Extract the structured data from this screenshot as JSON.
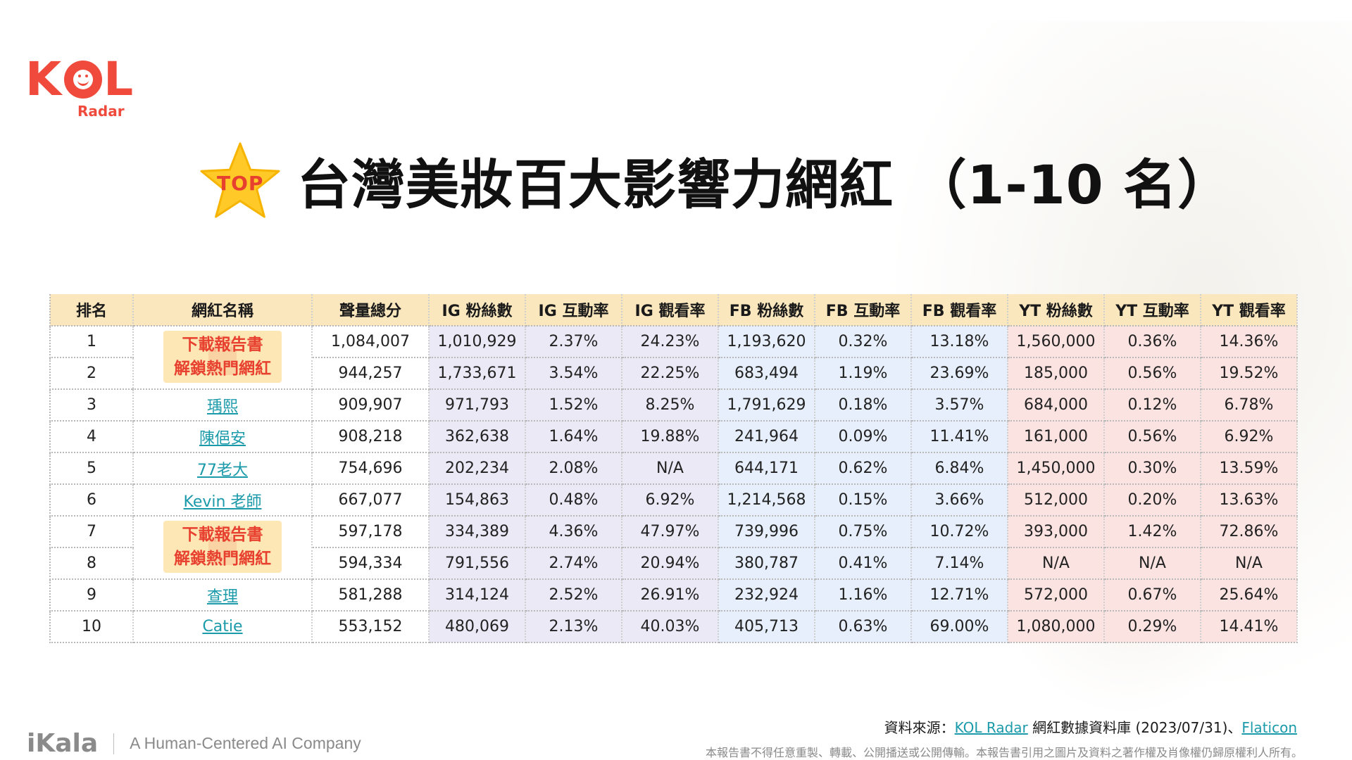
{
  "logo": {
    "main_left": "K",
    "main_right": "L",
    "sub": "Radar"
  },
  "badge": {
    "label": "TOP"
  },
  "title": "台灣美妝百大影響力網紅 （1-10 名）",
  "colors": {
    "accent": "#ef4a3c",
    "header_bg": "#fbe7be",
    "ig_bg": "#ece9f6",
    "fb_bg": "#e6effb",
    "yt_bg": "#fbe3e1",
    "link": "#1b9aaa"
  },
  "table": {
    "headers": [
      "排名",
      "網紅名稱",
      "聲量總分",
      "IG 粉絲數",
      "IG 互動率",
      "IG 觀看率",
      "FB 粉絲數",
      "FB 互動率",
      "FB 觀看率",
      "YT 粉絲數",
      "YT 互動率",
      "YT 觀看率"
    ],
    "locked_label_1": "下載報告書",
    "locked_label_2": "解鎖熱門網紅",
    "rows": [
      {
        "rank": "1",
        "name": "",
        "score": "1,084,007",
        "ig_fans": "1,010,929",
        "ig_eng": "2.37%",
        "ig_view": "24.23%",
        "fb_fans": "1,193,620",
        "fb_eng": "0.32%",
        "fb_view": "13.18%",
        "yt_fans": "1,560,000",
        "yt_eng": "0.36%",
        "yt_view": "14.36%"
      },
      {
        "rank": "2",
        "name": "",
        "score": "944,257",
        "ig_fans": "1,733,671",
        "ig_eng": "3.54%",
        "ig_view": "22.25%",
        "fb_fans": "683,494",
        "fb_eng": "1.19%",
        "fb_view": "23.69%",
        "yt_fans": "185,000",
        "yt_eng": "0.56%",
        "yt_view": "19.52%"
      },
      {
        "rank": "3",
        "name": "瑀熙",
        "score": "909,907",
        "ig_fans": "971,793",
        "ig_eng": "1.52%",
        "ig_view": "8.25%",
        "fb_fans": "1,791,629",
        "fb_eng": "0.18%",
        "fb_view": "3.57%",
        "yt_fans": "684,000",
        "yt_eng": "0.12%",
        "yt_view": "6.78%"
      },
      {
        "rank": "4",
        "name": "陳俋安",
        "score": "908,218",
        "ig_fans": "362,638",
        "ig_eng": "1.64%",
        "ig_view": "19.88%",
        "fb_fans": "241,964",
        "fb_eng": "0.09%",
        "fb_view": "11.41%",
        "yt_fans": "161,000",
        "yt_eng": "0.56%",
        "yt_view": "6.92%"
      },
      {
        "rank": "5",
        "name": "77老大",
        "score": "754,696",
        "ig_fans": "202,234",
        "ig_eng": "2.08%",
        "ig_view": "N/A",
        "fb_fans": "644,171",
        "fb_eng": "0.62%",
        "fb_view": "6.84%",
        "yt_fans": "1,450,000",
        "yt_eng": "0.30%",
        "yt_view": "13.59%"
      },
      {
        "rank": "6",
        "name": "Kevin 老師",
        "score": "667,077",
        "ig_fans": "154,863",
        "ig_eng": "0.48%",
        "ig_view": "6.92%",
        "fb_fans": "1,214,568",
        "fb_eng": "0.15%",
        "fb_view": "3.66%",
        "yt_fans": "512,000",
        "yt_eng": "0.20%",
        "yt_view": "13.63%"
      },
      {
        "rank": "7",
        "name": "",
        "score": "597,178",
        "ig_fans": "334,389",
        "ig_eng": "4.36%",
        "ig_view": "47.97%",
        "fb_fans": "739,996",
        "fb_eng": "0.75%",
        "fb_view": "10.72%",
        "yt_fans": "393,000",
        "yt_eng": "1.42%",
        "yt_view": "72.86%"
      },
      {
        "rank": "8",
        "name": "",
        "score": "594,334",
        "ig_fans": "791,556",
        "ig_eng": "2.74%",
        "ig_view": "20.94%",
        "fb_fans": "380,787",
        "fb_eng": "0.41%",
        "fb_view": "7.14%",
        "yt_fans": "N/A",
        "yt_eng": "N/A",
        "yt_view": "N/A"
      },
      {
        "rank": "9",
        "name": "查理",
        "score": "581,288",
        "ig_fans": "314,124",
        "ig_eng": "2.52%",
        "ig_view": "26.91%",
        "fb_fans": "232,924",
        "fb_eng": "1.16%",
        "fb_view": "12.71%",
        "yt_fans": "572,000",
        "yt_eng": "0.67%",
        "yt_view": "25.64%"
      },
      {
        "rank": "10",
        "name": "Catie",
        "score": "553,152",
        "ig_fans": "480,069",
        "ig_eng": "2.13%",
        "ig_view": "40.03%",
        "fb_fans": "405,713",
        "fb_eng": "0.63%",
        "fb_view": "69.00%",
        "yt_fans": "1,080,000",
        "yt_eng": "0.29%",
        "yt_view": "14.41%"
      }
    ]
  },
  "footer": {
    "source_prefix": "資料來源：",
    "source_link1": "KOL Radar",
    "source_mid": " 網紅數據資料庫 (2023/07/31)、",
    "source_link2": "Flaticon",
    "disclaimer": "本報告書不得任意重製、轉載、公開播送或公開傳輸。本報告書引用之圖片及資料之著作權及肖像權仍歸原權利人所有。",
    "company_logo": "iKala",
    "company_tagline": "A Human-Centered AI Company"
  }
}
